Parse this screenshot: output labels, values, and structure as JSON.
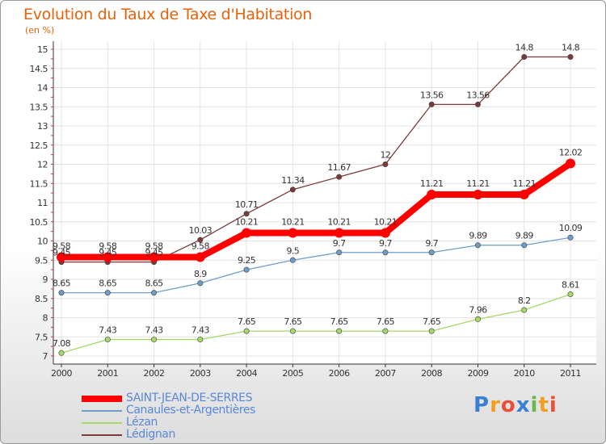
{
  "chart_data": {
    "type": "line",
    "title": "Evolution du Taux de Taxe d'Habitation",
    "subtitle": "(en %)",
    "x": [
      "2000",
      "2001",
      "2002",
      "2003",
      "2004",
      "2005",
      "2006",
      "2007",
      "2008",
      "2009",
      "2010",
      "2011"
    ],
    "ylim": [
      7,
      15
    ],
    "yticks": [
      "7",
      "7.5",
      "8",
      "8.5",
      "9",
      "9.5",
      "10",
      "10.5",
      "11",
      "11.5",
      "12",
      "12.5",
      "13",
      "13.5",
      "14",
      "14.5",
      "15"
    ],
    "series": [
      {
        "name": "SAINT-JEAN-DE-SERRES",
        "color": "#ff0000",
        "values": [
          9.58,
          9.58,
          9.58,
          9.58,
          10.21,
          10.21,
          10.21,
          10.21,
          11.21,
          11.21,
          11.21,
          12.02
        ],
        "labels": [
          "9.58",
          "9.58",
          "9.58",
          "9.58",
          "10.21",
          "10.21",
          "10.21",
          "10.21",
          "11.21",
          "11.21",
          "11.21",
          "12.02"
        ]
      },
      {
        "name": "Canaules-et-Argentières",
        "color": "#6e9ec8",
        "values": [
          8.65,
          8.65,
          8.65,
          8.9,
          9.25,
          9.5,
          9.7,
          9.7,
          9.7,
          9.89,
          9.89,
          10.09
        ],
        "labels": [
          "8.65",
          "8.65",
          "8.65",
          "8.9",
          "9.25",
          "9.5",
          "9.7",
          "9.7",
          "9.7",
          "9.89",
          "9.89",
          "10.09"
        ]
      },
      {
        "name": "Lézan",
        "color": "#a6d96a",
        "values": [
          7.08,
          7.43,
          7.43,
          7.43,
          7.65,
          7.65,
          7.65,
          7.65,
          7.65,
          7.96,
          8.2,
          8.61
        ],
        "labels": [
          "7.08",
          "7.43",
          "7.43",
          "7.43",
          "7.65",
          "7.65",
          "7.65",
          "7.65",
          "7.65",
          "7.96",
          "8.2",
          "8.61"
        ]
      },
      {
        "name": "Lédignan",
        "color": "#7b3a3a",
        "values": [
          9.45,
          9.45,
          9.45,
          10.03,
          10.71,
          11.34,
          11.67,
          12,
          13.56,
          13.56,
          14.8,
          14.8
        ],
        "labels": [
          "9.45",
          "9.45",
          "9.45",
          "10.03",
          "10.71",
          "11.34",
          "11.67",
          "12",
          "13.56",
          "13.56",
          "14.8",
          "14.8"
        ]
      }
    ]
  },
  "logo": {
    "letters": [
      "P",
      "r",
      "o",
      "x",
      "i",
      "t",
      "i"
    ],
    "colors": [
      "#3a7fd0",
      "#f0a020",
      "#e8503a",
      "#3a7fd0",
      "#66b84a",
      "#f0a020",
      "#e8503a"
    ]
  }
}
